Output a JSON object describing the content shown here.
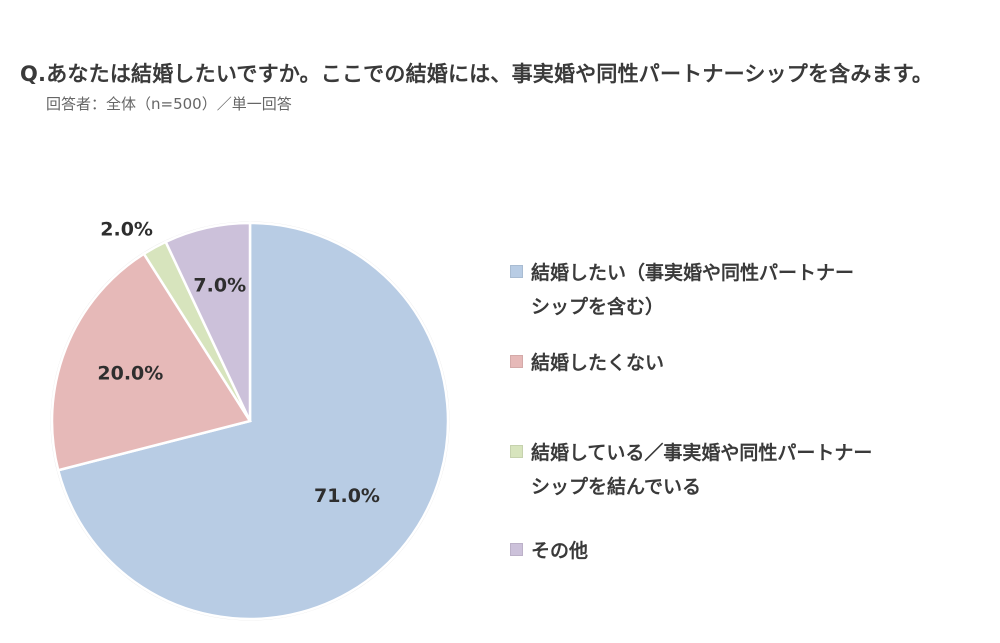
{
  "header": {
    "title": "Q.あなたは結婚したいですか。ここでの結婚には、事実婚や同性パートナーシップを含みます。",
    "subtitle": "回答者：全体（n=500）／単一回答"
  },
  "chart_data": {
    "type": "pie",
    "start_angle_deg": 0,
    "direction": "clockwise",
    "slices": [
      {
        "label": "結婚したい（事実婚や同性パートナーシップを含む）",
        "value": 71.0,
        "display": "71.0%",
        "color": "#b8cce4"
      },
      {
        "label": "結婚したくない",
        "value": 20.0,
        "display": "20.0%",
        "color": "#e6b9b8"
      },
      {
        "label": "結婚している／事実婚や同性パートナーシップを結んでいる",
        "value": 2.0,
        "display": "2.0%",
        "color": "#d7e4bd"
      },
      {
        "label": "その他",
        "value": 7.0,
        "display": "7.0%",
        "color": "#ccc1da"
      }
    ],
    "legend_position": "right"
  },
  "legend": {
    "items": [
      {
        "line1": "結婚したい（事実婚や同性パートナー",
        "line2": "シップを含む）"
      },
      {
        "line1": "結婚したくない",
        "line2": ""
      },
      {
        "line1": "結婚している／事実婚や同性パートナー",
        "line2": "シップを結んでいる"
      },
      {
        "line1": "その他",
        "line2": ""
      }
    ]
  }
}
